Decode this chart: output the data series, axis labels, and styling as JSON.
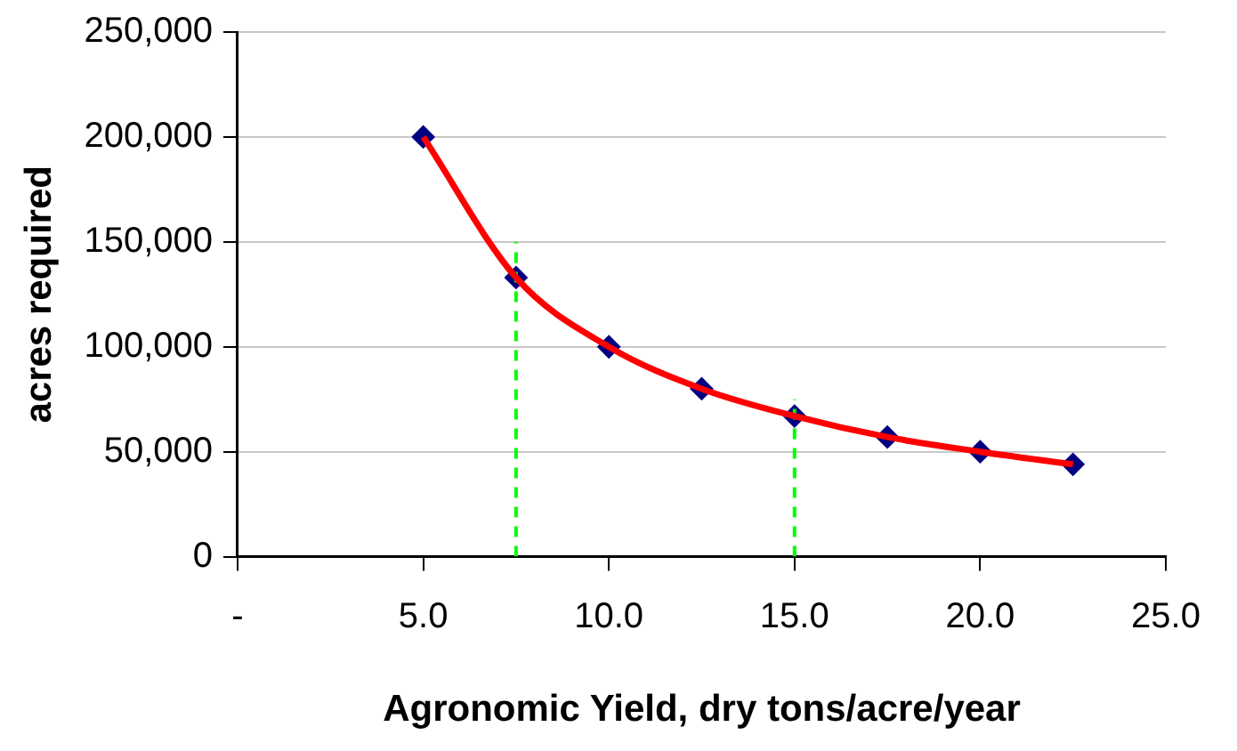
{
  "chart_data": {
    "type": "scatter",
    "xlabel": "Agronomic Yield, dry tons/acre/year",
    "ylabel": "acres required",
    "xlim": [
      0,
      25
    ],
    "xticks": [
      {
        "value": 0,
        "label": "-"
      },
      {
        "value": 5,
        "label": "5.0"
      },
      {
        "value": 10,
        "label": "10.0"
      },
      {
        "value": 15,
        "label": "15.0"
      },
      {
        "value": 20,
        "label": "20.0"
      },
      {
        "value": 25,
        "label": "25.0"
      }
    ],
    "ylim": [
      0,
      250000
    ],
    "yticks": [
      0,
      {
        "value": 50000,
        "label": "50,000"
      },
      {
        "value": 100000,
        "label": "100,000"
      },
      {
        "value": 150000,
        "label": "150,000"
      },
      {
        "value": 200000,
        "label": "200,000"
      },
      {
        "value": 250000,
        "label": "250,000"
      }
    ],
    "grid": "y",
    "legend": false,
    "series": [
      {
        "type": "line",
        "color": "#ff0000",
        "marker": "none",
        "line_style": "solid",
        "x": [
          5,
          7.5,
          10,
          12.5,
          15,
          17.5,
          20,
          22.5
        ],
        "values": [
          200000,
          133000,
          100000,
          80000,
          67000,
          57000,
          50000,
          44000
        ]
      },
      {
        "type": "scatter",
        "color": "#000080",
        "marker": "diamond",
        "x": [
          5,
          7.5,
          10,
          12.5,
          15,
          17.5,
          20,
          22.5
        ],
        "values": [
          200000,
          133000,
          100000,
          80000,
          67000,
          57000,
          50000,
          44000
        ]
      },
      {
        "type": "line",
        "color": "#00ff00",
        "marker": "none",
        "line_style": "dashed",
        "x": [
          7.5,
          7.5
        ],
        "values": [
          0,
          150000
        ]
      },
      {
        "type": "line",
        "color": "#00ff00",
        "marker": "none",
        "line_style": "dashed",
        "x": [
          15,
          15
        ],
        "values": [
          0,
          75000
        ]
      }
    ]
  }
}
